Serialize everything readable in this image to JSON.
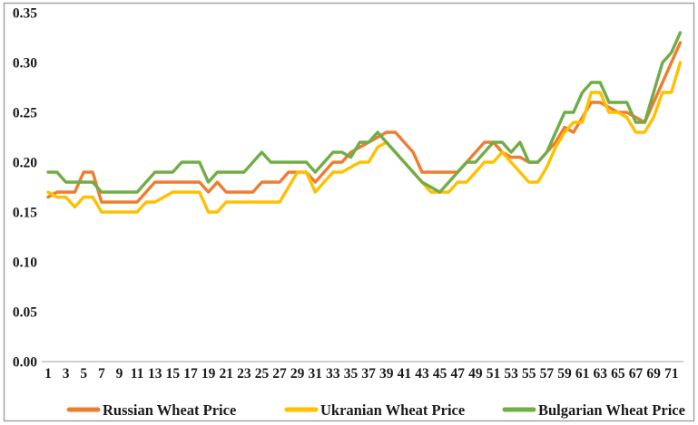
{
  "chart_data": {
    "type": "line",
    "title": "",
    "xlabel": "",
    "ylabel": "",
    "x_range": [
      1,
      72
    ],
    "ylim": [
      0,
      0.35
    ],
    "grid": false,
    "legend_position": "bottom",
    "y_tick_labels": [
      "0.00",
      "0.05",
      "0.10",
      "0.15",
      "0.20",
      "0.25",
      "0.30",
      "0.35"
    ],
    "y_tick_values": [
      0.0,
      0.05,
      0.1,
      0.15,
      0.2,
      0.25,
      0.3,
      0.35
    ],
    "x_tick_labels": [
      1,
      3,
      5,
      7,
      9,
      11,
      13,
      15,
      17,
      19,
      21,
      23,
      25,
      27,
      29,
      31,
      33,
      35,
      37,
      39,
      41,
      43,
      45,
      47,
      49,
      51,
      53,
      55,
      57,
      59,
      61,
      63,
      65,
      67,
      69,
      71
    ],
    "axis_color": "#bfbfbf",
    "border_color": "#a0a0a0",
    "series": [
      {
        "name": "Russian Wheat  Price",
        "color": "#ED7D31",
        "values": [
          0.165,
          0.17,
          0.17,
          0.17,
          0.19,
          0.19,
          0.16,
          0.16,
          0.16,
          0.16,
          0.16,
          0.17,
          0.18,
          0.18,
          0.18,
          0.18,
          0.18,
          0.18,
          0.17,
          0.18,
          0.17,
          0.17,
          0.17,
          0.17,
          0.18,
          0.18,
          0.18,
          0.19,
          0.19,
          0.19,
          0.18,
          0.19,
          0.2,
          0.2,
          0.21,
          0.215,
          0.22,
          0.225,
          0.23,
          0.23,
          0.22,
          0.21,
          0.19,
          0.19,
          0.19,
          0.19,
          0.19,
          0.2,
          0.21,
          0.22,
          0.22,
          0.21,
          0.205,
          0.205,
          0.2,
          0.2,
          0.21,
          0.22,
          0.235,
          0.23,
          0.245,
          0.26,
          0.26,
          0.255,
          0.25,
          0.25,
          0.245,
          0.24,
          0.26,
          0.28,
          0.3,
          0.32
        ]
      },
      {
        "name": "Ukranian Wheat  Price",
        "color": "#FFC000",
        "values": [
          0.17,
          0.165,
          0.165,
          0.155,
          0.165,
          0.165,
          0.15,
          0.15,
          0.15,
          0.15,
          0.15,
          0.16,
          0.16,
          0.165,
          0.17,
          0.17,
          0.17,
          0.17,
          0.15,
          0.15,
          0.16,
          0.16,
          0.16,
          0.16,
          0.16,
          0.16,
          0.16,
          0.175,
          0.19,
          0.19,
          0.17,
          0.18,
          0.19,
          0.19,
          0.195,
          0.2,
          0.2,
          0.215,
          0.22,
          0.21,
          0.2,
          0.19,
          0.18,
          0.17,
          0.17,
          0.17,
          0.18,
          0.18,
          0.19,
          0.2,
          0.2,
          0.21,
          0.2,
          0.19,
          0.18,
          0.18,
          0.195,
          0.215,
          0.23,
          0.24,
          0.24,
          0.27,
          0.27,
          0.25,
          0.25,
          0.245,
          0.23,
          0.23,
          0.245,
          0.27,
          0.27,
          0.3
        ]
      },
      {
        "name": "Bulgarian Wheat  Price",
        "color": "#70AD47",
        "values": [
          0.19,
          0.19,
          0.18,
          0.18,
          0.18,
          0.18,
          0.17,
          0.17,
          0.17,
          0.17,
          0.17,
          0.18,
          0.19,
          0.19,
          0.19,
          0.2,
          0.2,
          0.2,
          0.18,
          0.19,
          0.19,
          0.19,
          0.19,
          0.2,
          0.21,
          0.2,
          0.2,
          0.2,
          0.2,
          0.2,
          0.19,
          0.2,
          0.21,
          0.21,
          0.205,
          0.22,
          0.22,
          0.23,
          0.22,
          0.21,
          0.2,
          0.19,
          0.18,
          0.175,
          0.17,
          0.18,
          0.19,
          0.2,
          0.2,
          0.21,
          0.22,
          0.22,
          0.21,
          0.22,
          0.2,
          0.2,
          0.21,
          0.23,
          0.25,
          0.25,
          0.27,
          0.28,
          0.28,
          0.26,
          0.26,
          0.26,
          0.24,
          0.24,
          0.27,
          0.3,
          0.31,
          0.33
        ]
      }
    ],
    "legend": [
      {
        "label": "Russian Wheat  Price",
        "color": "#ED7D31"
      },
      {
        "label": "Ukranian Wheat  Price",
        "color": "#FFC000"
      },
      {
        "label": "Bulgarian Wheat  Price",
        "color": "#70AD47"
      }
    ]
  }
}
